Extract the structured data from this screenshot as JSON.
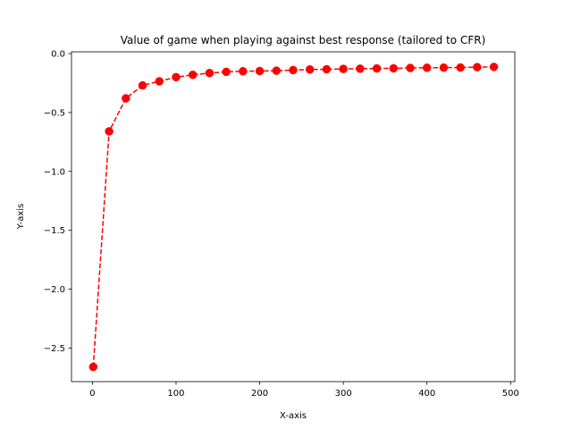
{
  "chart_data": {
    "type": "line",
    "title": "Value of game when playing against best response (tailored to CFR)",
    "xlabel": "X-axis",
    "ylabel": "Y-axis",
    "xlim": [
      -25,
      505
    ],
    "ylim": [
      -2.785,
      0.015
    ],
    "xticks": [
      0,
      100,
      200,
      300,
      400,
      500
    ],
    "yticks": [
      0.0,
      -0.5,
      -1.0,
      -1.5,
      -2.0,
      -2.5
    ],
    "ytick_labels": [
      "0.0",
      "−0.5",
      "−1.0",
      "−1.5",
      "−2.0",
      "−2.5"
    ],
    "grid": false,
    "series": [
      {
        "color": "#ff0000",
        "line_style": "dashed",
        "marker": "circle",
        "x": [
          1,
          20,
          40,
          60,
          80,
          100,
          120,
          140,
          160,
          180,
          200,
          220,
          240,
          260,
          280,
          300,
          320,
          340,
          360,
          380,
          400,
          420,
          440,
          460,
          480
        ],
        "y": [
          -2.66,
          -0.66,
          -0.38,
          -0.27,
          -0.235,
          -0.2,
          -0.18,
          -0.165,
          -0.155,
          -0.15,
          -0.148,
          -0.145,
          -0.14,
          -0.135,
          -0.133,
          -0.13,
          -0.128,
          -0.126,
          -0.125,
          -0.122,
          -0.12,
          -0.119,
          -0.118,
          -0.115,
          -0.113
        ]
      }
    ]
  }
}
